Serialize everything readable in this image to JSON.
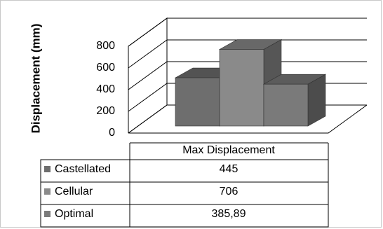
{
  "chart_data": {
    "type": "bar",
    "ylabel": "Displacement (mm)",
    "categories": [
      "Max Displacement"
    ],
    "series": [
      {
        "name": "Castellated",
        "values": [
          445
        ],
        "display": "445",
        "color": "#6e6e6e"
      },
      {
        "name": "Cellular",
        "values": [
          706
        ],
        "display": "706",
        "color": "#8a8a8a"
      },
      {
        "name": "Optimal",
        "values": [
          385.89
        ],
        "display": "385,89",
        "color": "#7a7a7a"
      }
    ],
    "yticks": [
      "0",
      "200",
      "400",
      "600",
      "800"
    ],
    "ylim": [
      0,
      800
    ],
    "grid": true,
    "legend": "data-table"
  }
}
